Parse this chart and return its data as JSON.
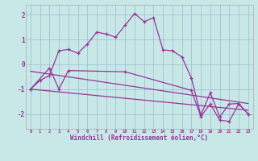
{
  "xlabel": "Windchill (Refroidissement éolien,°C)",
  "bg_color": "#c8e8e8",
  "line_color": "#993399",
  "grid_color": "#99bbcc",
  "line1_x": [
    0,
    1,
    2,
    3,
    4,
    5,
    6,
    7,
    8,
    9,
    10,
    11,
    12,
    13,
    14,
    15,
    16,
    17,
    18,
    19,
    20,
    21,
    22,
    23
  ],
  "line1_y": [
    -1.0,
    -0.65,
    -0.45,
    0.55,
    0.6,
    0.45,
    0.82,
    1.3,
    1.22,
    1.1,
    1.58,
    2.05,
    1.72,
    1.88,
    0.58,
    0.55,
    0.3,
    -0.55,
    -2.05,
    -1.15,
    -2.12,
    -1.6,
    -1.58,
    -2.0
  ],
  "line2_x": [
    0,
    2,
    3,
    4,
    10,
    17,
    18,
    19,
    20,
    21,
    22,
    23
  ],
  "line2_y": [
    -1.0,
    -0.15,
    -1.0,
    -0.25,
    -0.3,
    -1.05,
    -2.1,
    -1.6,
    -2.25,
    -2.3,
    -1.6,
    -2.0
  ],
  "line3_x": [
    0,
    23
  ],
  "line3_y": [
    -0.28,
    -1.58
  ],
  "line4_x": [
    0,
    23
  ],
  "line4_y": [
    -1.0,
    -1.85
  ],
  "xlim": [
    -0.5,
    23.5
  ],
  "ylim": [
    -2.6,
    2.4
  ],
  "yticks": [
    -2,
    -1,
    0,
    1,
    2
  ],
  "xticks": [
    0,
    1,
    2,
    3,
    4,
    5,
    6,
    7,
    8,
    9,
    10,
    11,
    12,
    13,
    14,
    15,
    16,
    17,
    18,
    19,
    20,
    21,
    22,
    23
  ]
}
